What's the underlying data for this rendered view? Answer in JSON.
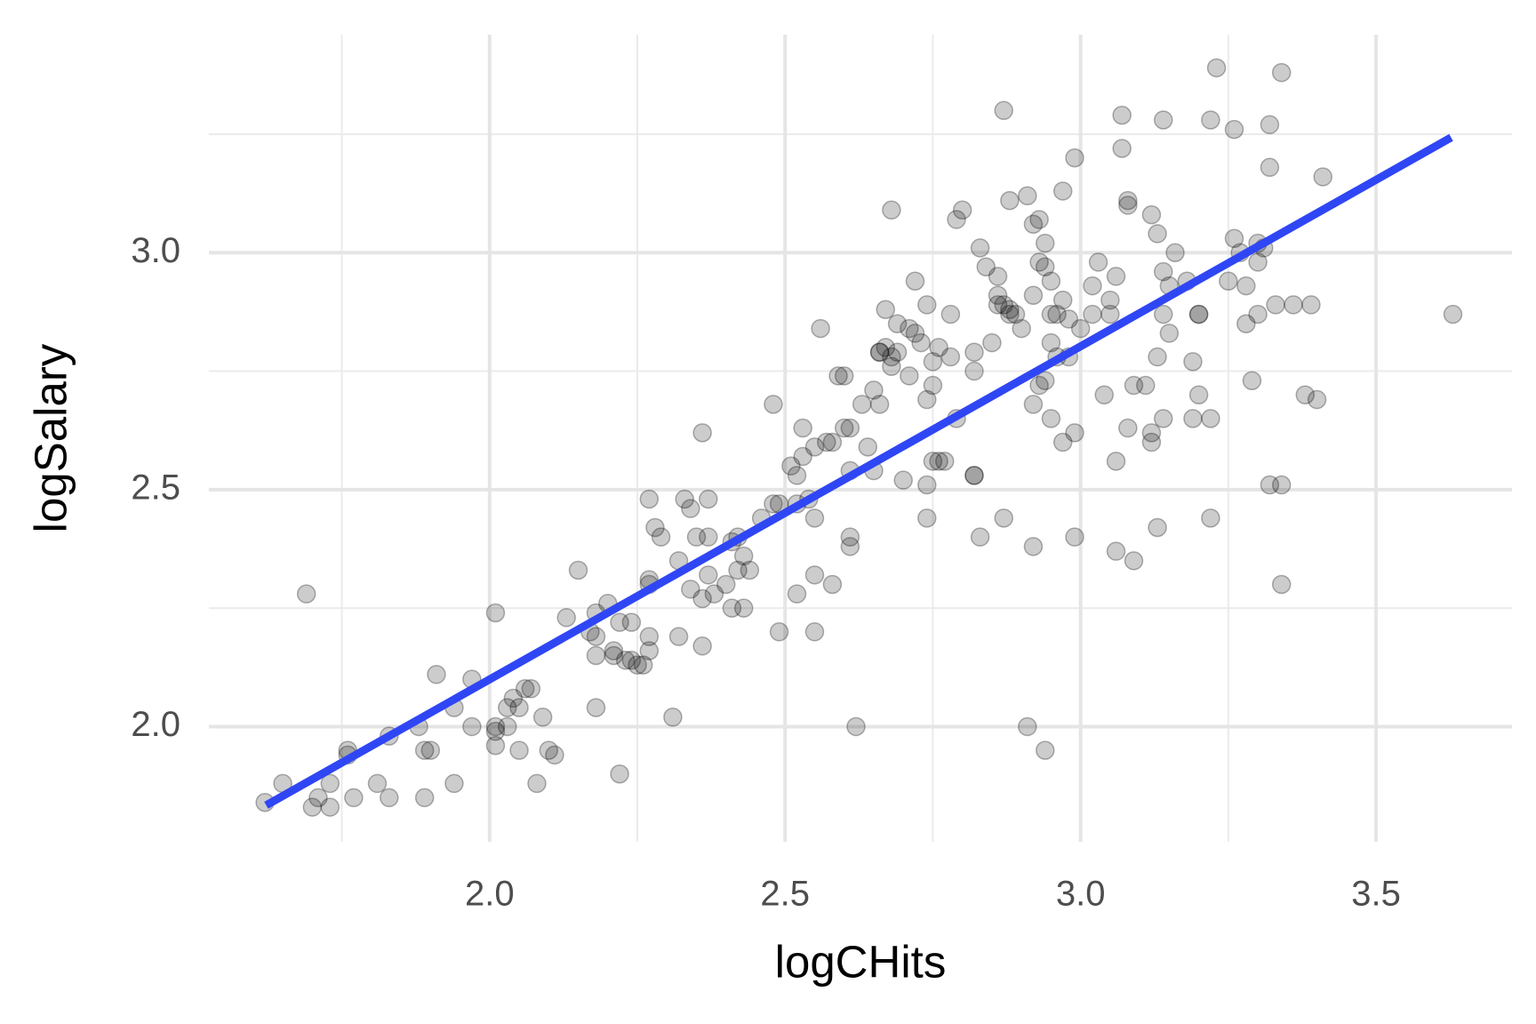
{
  "chart_data": {
    "type": "scatter",
    "x_label": "logCHits",
    "y_label": "logSalary",
    "xlim": [
      1.525,
      3.73
    ],
    "ylim": [
      1.757,
      3.46
    ],
    "xticks": [
      {
        "value": 2,
        "label": "2.0"
      },
      2.5,
      {
        "value": 3,
        "label": "3.0"
      },
      3.5
    ],
    "yticks": [
      {
        "value": 2,
        "label": "2.0"
      },
      2.5,
      {
        "value": 3,
        "label": "3.0"
      }
    ],
    "minor_xticks": [
      1.75,
      2.25,
      2.75,
      3.25
    ],
    "minor_yticks": [
      2.25,
      2.75,
      3.25
    ],
    "grid": true,
    "color": "#000000",
    "x": [
      1.62,
      1.65,
      1.7,
      1.71,
      1.73,
      1.73,
      1.69,
      1.76,
      1.76,
      1.77,
      1.81,
      1.83,
      1.83,
      1.88,
      1.89,
      1.9,
      1.89,
      1.91,
      1.94,
      1.94,
      1.97,
      1.97,
      2.01,
      2.01,
      2.01,
      2.01,
      2.03,
      2.03,
      2.04,
      2.05,
      2.05,
      2.06,
      2.07,
      2.08,
      2.09,
      2.1,
      2.11,
      2.13,
      2.15,
      2.17,
      2.18,
      2.18,
      2.18,
      2.18,
      2.2,
      2.21,
      2.21,
      2.22,
      2.22,
      2.23,
      2.24,
      2.24,
      2.25,
      2.26,
      2.27,
      2.27,
      2.27,
      2.27,
      2.27,
      2.28,
      2.29,
      2.31,
      2.32,
      2.32,
      2.33,
      2.34,
      2.34,
      2.35,
      2.36,
      2.36,
      2.36,
      2.37,
      2.37,
      2.37,
      2.38,
      2.4,
      2.41,
      2.41,
      2.42,
      2.42,
      2.43,
      2.43,
      2.44,
      2.46,
      2.48,
      2.48,
      2.49,
      2.49,
      2.51,
      2.52,
      2.52,
      2.52,
      2.53,
      2.53,
      2.54,
      2.55,
      2.55,
      2.55,
      2.55,
      2.56,
      2.57,
      2.58,
      2.58,
      2.59,
      2.6,
      2.6,
      2.61,
      2.61,
      2.61,
      2.61,
      2.62,
      2.63,
      2.64,
      2.65,
      2.65,
      2.66,
      2.66,
      2.66,
      2.67,
      2.67,
      2.68,
      2.68,
      2.68,
      2.69,
      2.69,
      2.7,
      2.71,
      2.71,
      2.72,
      2.72,
      2.73,
      2.74,
      2.74,
      2.74,
      2.74,
      2.75,
      2.75,
      2.75,
      2.76,
      2.76,
      2.77,
      2.78,
      2.78,
      2.79,
      2.79,
      2.8,
      2.82,
      2.82,
      2.82,
      2.82,
      2.83,
      2.83,
      2.84,
      2.85,
      2.86,
      2.86,
      2.86,
      2.87,
      2.87,
      2.87,
      2.88,
      2.88,
      2.88,
      2.89,
      2.9,
      2.91,
      2.91,
      2.92,
      2.92,
      2.92,
      2.92,
      2.93,
      2.93,
      2.93,
      2.94,
      2.94,
      2.94,
      2.94,
      2.95,
      2.95,
      2.95,
      2.95,
      2.96,
      2.96,
      2.97,
      2.97,
      2.97,
      2.98,
      2.98,
      2.99,
      2.99,
      2.99,
      3.0,
      3.02,
      3.02,
      3.03,
      3.04,
      3.05,
      3.05,
      3.06,
      3.06,
      3.06,
      3.07,
      3.07,
      3.08,
      3.08,
      3.08,
      3.09,
      3.09,
      3.11,
      3.12,
      3.12,
      3.12,
      3.13,
      3.13,
      3.13,
      3.14,
      3.14,
      3.14,
      3.14,
      3.15,
      3.15,
      3.16,
      3.18,
      3.19,
      3.19,
      3.2,
      3.2,
      3.2,
      3.22,
      3.22,
      3.22,
      3.23,
      3.25,
      3.26,
      3.26,
      3.27,
      3.28,
      3.28,
      3.29,
      3.3,
      3.3,
      3.3,
      3.31,
      3.32,
      3.32,
      3.32,
      3.33,
      3.34,
      3.34,
      3.34,
      3.36,
      3.38,
      3.39,
      3.4,
      3.41,
      3.63
    ],
    "values": [
      1.84,
      1.88,
      1.83,
      1.85,
      1.83,
      1.88,
      2.28,
      1.95,
      1.94,
      1.85,
      1.88,
      1.85,
      1.98,
      2.0,
      1.95,
      1.95,
      1.85,
      2.11,
      2.04,
      1.88,
      2.0,
      2.1,
      1.96,
      1.99,
      2.0,
      2.24,
      2.0,
      2.04,
      2.06,
      2.04,
      1.95,
      2.08,
      2.08,
      1.88,
      2.02,
      1.95,
      1.94,
      2.23,
      2.33,
      2.2,
      2.04,
      2.24,
      2.19,
      2.15,
      2.26,
      2.15,
      2.16,
      1.9,
      2.22,
      2.14,
      2.14,
      2.22,
      2.13,
      2.13,
      2.48,
      2.31,
      2.3,
      2.16,
      2.19,
      2.42,
      2.4,
      2.02,
      2.35,
      2.19,
      2.48,
      2.46,
      2.29,
      2.4,
      2.27,
      2.62,
      2.17,
      2.32,
      2.4,
      2.48,
      2.28,
      2.3,
      2.39,
      2.25,
      2.33,
      2.4,
      2.25,
      2.36,
      2.33,
      2.44,
      2.68,
      2.47,
      2.47,
      2.2,
      2.55,
      2.28,
      2.47,
      2.53,
      2.57,
      2.63,
      2.48,
      2.59,
      2.44,
      2.32,
      2.2,
      2.84,
      2.6,
      2.6,
      2.3,
      2.74,
      2.74,
      2.63,
      2.54,
      2.4,
      2.63,
      2.38,
      2.0,
      2.68,
      2.59,
      2.71,
      2.54,
      2.79,
      2.68,
      2.79,
      2.8,
      2.88,
      3.09,
      2.78,
      2.76,
      2.79,
      2.85,
      2.52,
      2.74,
      2.84,
      2.94,
      2.83,
      2.81,
      2.69,
      2.44,
      2.89,
      2.51,
      2.56,
      2.77,
      2.72,
      2.56,
      2.8,
      2.56,
      2.78,
      2.87,
      2.65,
      3.07,
      3.09,
      2.53,
      2.79,
      2.53,
      2.75,
      2.4,
      3.01,
      2.97,
      2.81,
      2.89,
      2.91,
      2.95,
      2.44,
      3.3,
      2.89,
      3.11,
      2.88,
      2.87,
      2.87,
      2.84,
      2.0,
      3.12,
      3.06,
      2.91,
      2.38,
      2.68,
      3.07,
      2.98,
      2.72,
      2.97,
      2.73,
      3.02,
      1.95,
      2.81,
      2.94,
      2.65,
      2.87,
      2.87,
      2.78,
      2.9,
      3.13,
      2.6,
      2.78,
      2.86,
      2.62,
      3.2,
      2.4,
      2.84,
      2.93,
      2.87,
      2.98,
      2.7,
      2.9,
      2.87,
      2.56,
      2.95,
      2.37,
      3.29,
      3.22,
      2.63,
      3.1,
      3.11,
      2.35,
      2.72,
      2.72,
      3.08,
      2.62,
      2.6,
      3.04,
      2.78,
      2.42,
      2.65,
      2.87,
      2.96,
      3.28,
      2.93,
      2.83,
      3.0,
      2.94,
      2.65,
      2.77,
      2.87,
      2.7,
      2.87,
      2.44,
      3.28,
      2.65,
      3.39,
      2.94,
      3.26,
      3.03,
      3.0,
      2.93,
      2.85,
      2.73,
      2.87,
      2.98,
      3.02,
      3.01,
      2.51,
      3.27,
      3.18,
      2.89,
      3.38,
      2.3,
      2.51,
      2.89,
      2.7,
      2.89,
      2.69,
      3.16,
      2.87
    ],
    "fit_line": {
      "x": [
        1.622,
        3.627
      ],
      "y": [
        1.834,
        3.243
      ],
      "color": "#2f46f5"
    }
  }
}
